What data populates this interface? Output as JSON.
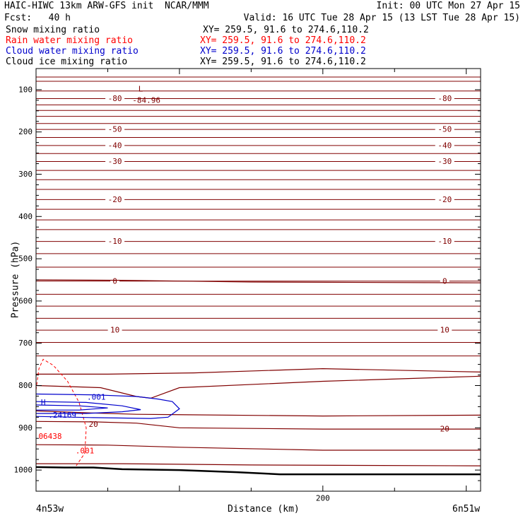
{
  "header": {
    "title_left": "HAIC-HIWC 13km ARW-GFS init  NCAR/MMM",
    "init": "Init: 00 UTC Mon 27 Apr 15",
    "fcst": "Fcst:   40 h",
    "valid": "Valid: 16 UTC Tue 28 Apr 15 (13 LST Tue 28 Apr 15)"
  },
  "legend": [
    {
      "label": "Snow mixing ratio",
      "xy": "XY= 259.5, 91.6 to 274.6,110.2",
      "color": "#000000"
    },
    {
      "label": "Rain water mixing ratio",
      "xy": "XY= 259.5, 91.6 to 274.6,110.2",
      "color": "#ff0000"
    },
    {
      "label": "Cloud water mixing ratio",
      "xy": "XY= 259.5, 91.6 to 274.6,110.2",
      "color": "#0000cc"
    },
    {
      "label": "Cloud ice mixing ratio",
      "xy": "XY= 259.5, 91.6 to 274.6,110.2",
      "color": "#000000"
    }
  ],
  "chart_data": {
    "type": "line",
    "xlabel": "Distance (km)",
    "ylabel": "Pressure (hPa)",
    "xlim": [
      0,
      310
    ],
    "ylim": [
      1050,
      50
    ],
    "x_ticks": [
      200
    ],
    "y_ticks": [
      100,
      200,
      300,
      400,
      500,
      600,
      700,
      800,
      900,
      1000
    ],
    "endpoint_left": "4n53w",
    "endpoint_right": "6n51w",
    "colors": {
      "temperature": "#800000",
      "cloud_water": "#0000cc",
      "rain_water": "#ff0000",
      "terrain": "#000000"
    },
    "isotherms": [
      {
        "p": 70
      },
      {
        "p": 80
      },
      {
        "p": 103
      },
      {
        "p": 121,
        "label": "-80"
      },
      {
        "p": 136
      },
      {
        "p": 149
      },
      {
        "p": 163
      },
      {
        "p": 180
      },
      {
        "p": 194,
        "label": "-50"
      },
      {
        "p": 213
      },
      {
        "p": 232,
        "label": "-40"
      },
      {
        "p": 251
      },
      {
        "p": 270,
        "label": "-30"
      },
      {
        "p": 291
      },
      {
        "p": 313
      },
      {
        "p": 336
      },
      {
        "p": 360,
        "label": "-20"
      },
      {
        "p": 383
      },
      {
        "p": 408
      },
      {
        "p": 431
      },
      {
        "p": 459,
        "label": "-10"
      },
      {
        "p": 488
      },
      {
        "p": 520
      },
      {
        "p": 553,
        "label": "0"
      },
      {
        "p": 584
      },
      {
        "p": 612
      },
      {
        "p": 641
      },
      {
        "p": 669,
        "label": "10"
      },
      {
        "p": 698
      },
      {
        "p": 730
      }
    ],
    "isotherm_curves": [
      {
        "points": [
          [
            0,
            550
          ],
          [
            60,
            551
          ],
          [
            150,
            555
          ],
          [
            310,
            557
          ]
        ]
      },
      {
        "points": [
          [
            0,
            773
          ],
          [
            50,
            773
          ],
          [
            110,
            770
          ],
          [
            200,
            760
          ],
          [
            310,
            768
          ]
        ]
      },
      {
        "points": [
          [
            0,
            800
          ],
          [
            45,
            805
          ],
          [
            70,
            826
          ],
          [
            80,
            830
          ],
          [
            100,
            805
          ],
          [
            200,
            790
          ],
          [
            310,
            778
          ]
        ]
      },
      {
        "points": [
          [
            0,
            860
          ],
          [
            40,
            865
          ],
          [
            70,
            868
          ],
          [
            200,
            872
          ],
          [
            310,
            870
          ]
        ]
      },
      {
        "points": [
          [
            0,
            885
          ],
          [
            40,
            886
          ],
          [
            70,
            889
          ],
          [
            100,
            900
          ],
          [
            200,
            903
          ],
          [
            310,
            903
          ],
          [
            310,
            903
          ]
        ],
        "label": "20"
      },
      {
        "points": [
          [
            0,
            940
          ],
          [
            50,
            941
          ],
          [
            100,
            946
          ],
          [
            200,
            953
          ],
          [
            310,
            953
          ]
        ]
      },
      {
        "points": [
          [
            0,
            985
          ],
          [
            60,
            985
          ],
          [
            150,
            988
          ],
          [
            310,
            990
          ]
        ]
      }
    ],
    "temp_min_label": "-84.96",
    "temp_min_marker": "L",
    "temp_min_point": [
      73,
      110
    ],
    "cloud_water": {
      "contour": ".001",
      "max": ".24169",
      "max_marker": "H",
      "max_point": [
        5,
        857
      ]
    },
    "rain_water": {
      "contour": ".001",
      "max": "06438"
    },
    "terrain": [
      [
        0,
        993
      ],
      [
        20,
        994
      ],
      [
        40,
        994
      ],
      [
        60,
        998
      ],
      [
        100,
        1000
      ],
      [
        140,
        1005
      ],
      [
        170,
        1010
      ],
      [
        220,
        1010
      ],
      [
        310,
        1010
      ]
    ]
  }
}
